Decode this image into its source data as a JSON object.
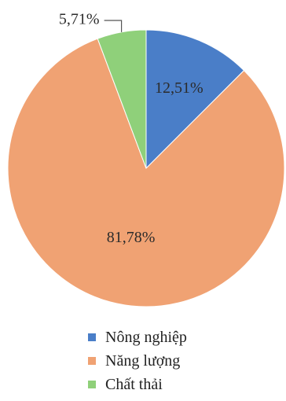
{
  "chart_data": {
    "type": "pie",
    "categories": [
      "Nông nghiệp",
      "Năng lượng",
      "Chất thải"
    ],
    "values": [
      12.51,
      81.78,
      5.71
    ],
    "labels": [
      "12,51%",
      "81,78%",
      "5,71%"
    ],
    "colors": [
      "#4a7ec8",
      "#f0a273",
      "#8fd07a"
    ],
    "legend_position": "bottom",
    "start_angle_deg": 0,
    "direction": "clockwise"
  }
}
